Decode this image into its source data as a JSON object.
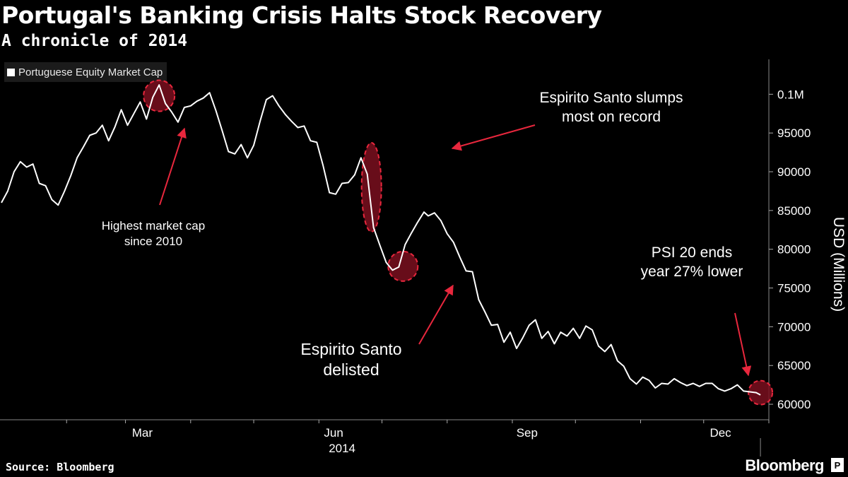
{
  "title": "Portugal's Banking Crisis Halts Stock Recovery",
  "subtitle": "A chronicle of 2014",
  "legend_label": "Portuguese Equity Market Cap",
  "source": "Source: Bloomberg",
  "brand": "Bloomberg",
  "brand_mark": "P",
  "colors": {
    "line": "#ffffff",
    "annotation": "#e8273d",
    "circle_fill": "#7a0f1e",
    "axis_text": "#ffffff"
  },
  "chart_data": {
    "type": "line",
    "title": "Portugal's Banking Crisis Halts Stock Recovery",
    "series_name": "Portuguese Equity Market Cap",
    "ylabel": "USD (Millions)",
    "ylim": [
      58000,
      104500
    ],
    "yticks": [
      60000,
      65000,
      70000,
      75000,
      80000,
      85000,
      90000,
      95000,
      100000
    ],
    "ytick_labels": [
      "60000",
      "65000",
      "70000",
      "75000",
      "80000",
      "85000",
      "90000",
      "95000",
      "0.1M"
    ],
    "xlim": [
      0,
      365
    ],
    "xticks": [
      {
        "day": 67,
        "label": "Mar"
      },
      {
        "day": 158,
        "label": "Jun"
      },
      {
        "day": 250,
        "label": "Sep"
      },
      {
        "day": 342,
        "label": "Dec"
      }
    ],
    "minor_xticks": [
      31,
      59,
      90,
      120,
      151,
      181,
      212,
      243,
      273,
      304,
      334,
      365
    ],
    "year_label": "2014",
    "x": [
      0,
      3,
      6,
      9,
      12,
      15,
      18,
      21,
      24,
      27,
      30,
      33,
      36,
      39,
      42,
      45,
      48,
      51,
      54,
      57,
      60,
      63,
      66,
      69,
      72,
      75,
      78,
      81,
      84,
      87,
      90,
      93,
      96,
      99,
      102,
      105,
      108,
      111,
      114,
      117,
      120,
      123,
      126,
      129,
      132,
      135,
      138,
      141,
      144,
      147,
      150,
      153,
      156,
      159,
      162,
      165,
      168,
      171,
      174,
      177,
      180,
      183,
      186,
      189,
      192,
      195,
      198,
      201,
      203,
      206,
      209,
      212,
      215,
      218,
      221,
      224,
      227,
      230,
      233,
      236,
      239,
      242,
      245,
      248,
      251,
      254,
      257,
      260,
      263,
      266,
      269,
      272,
      275,
      278,
      281,
      284,
      287,
      290,
      293,
      296,
      299,
      302,
      305,
      308,
      311,
      314,
      317,
      320,
      323,
      326,
      329,
      332,
      335,
      338,
      341,
      344,
      347,
      350,
      353,
      356,
      359,
      361
    ],
    "y": [
      86000,
      87500,
      90000,
      91300,
      90600,
      91000,
      88500,
      88200,
      86400,
      85700,
      87500,
      89500,
      91800,
      93200,
      94700,
      95000,
      96000,
      94000,
      95800,
      98000,
      96000,
      97500,
      99000,
      96800,
      99600,
      101200,
      98800,
      97700,
      96400,
      98300,
      98500,
      99100,
      99500,
      100200,
      97900,
      95300,
      92600,
      92300,
      93500,
      91800,
      93400,
      96500,
      99300,
      99800,
      98500,
      97400,
      96500,
      95700,
      95900,
      94000,
      93800,
      90800,
      87300,
      87100,
      88500,
      88600,
      89600,
      91800,
      89700,
      82800,
      80500,
      78300,
      77300,
      77700,
      80600,
      82100,
      83500,
      84800,
      84300,
      84700,
      83700,
      82000,
      80900,
      79000,
      77200,
      77100,
      73500,
      71900,
      70200,
      70300,
      68000,
      69300,
      67200,
      68600,
      70200,
      70900,
      68500,
      69400,
      67800,
      69300,
      68800,
      69800,
      68500,
      70100,
      69600,
      67500,
      66800,
      67700,
      65600,
      64900,
      63300,
      62600,
      63500,
      63100,
      62100,
      62700,
      62600,
      63300,
      62800,
      62400,
      62700,
      62300,
      62700,
      62700,
      62000,
      61700,
      62000,
      62500,
      61700,
      61600,
      61500,
      61200
    ],
    "annotations": [
      {
        "text": [
          "Highest market cap",
          "since 2010"
        ]
      },
      {
        "text": [
          "Espirito Santo slumps",
          "most on record"
        ]
      },
      {
        "text": [
          "Espirito Santo",
          "delisted"
        ]
      },
      {
        "text": [
          "PSI 20 ends",
          "year 27% lower"
        ]
      }
    ]
  }
}
